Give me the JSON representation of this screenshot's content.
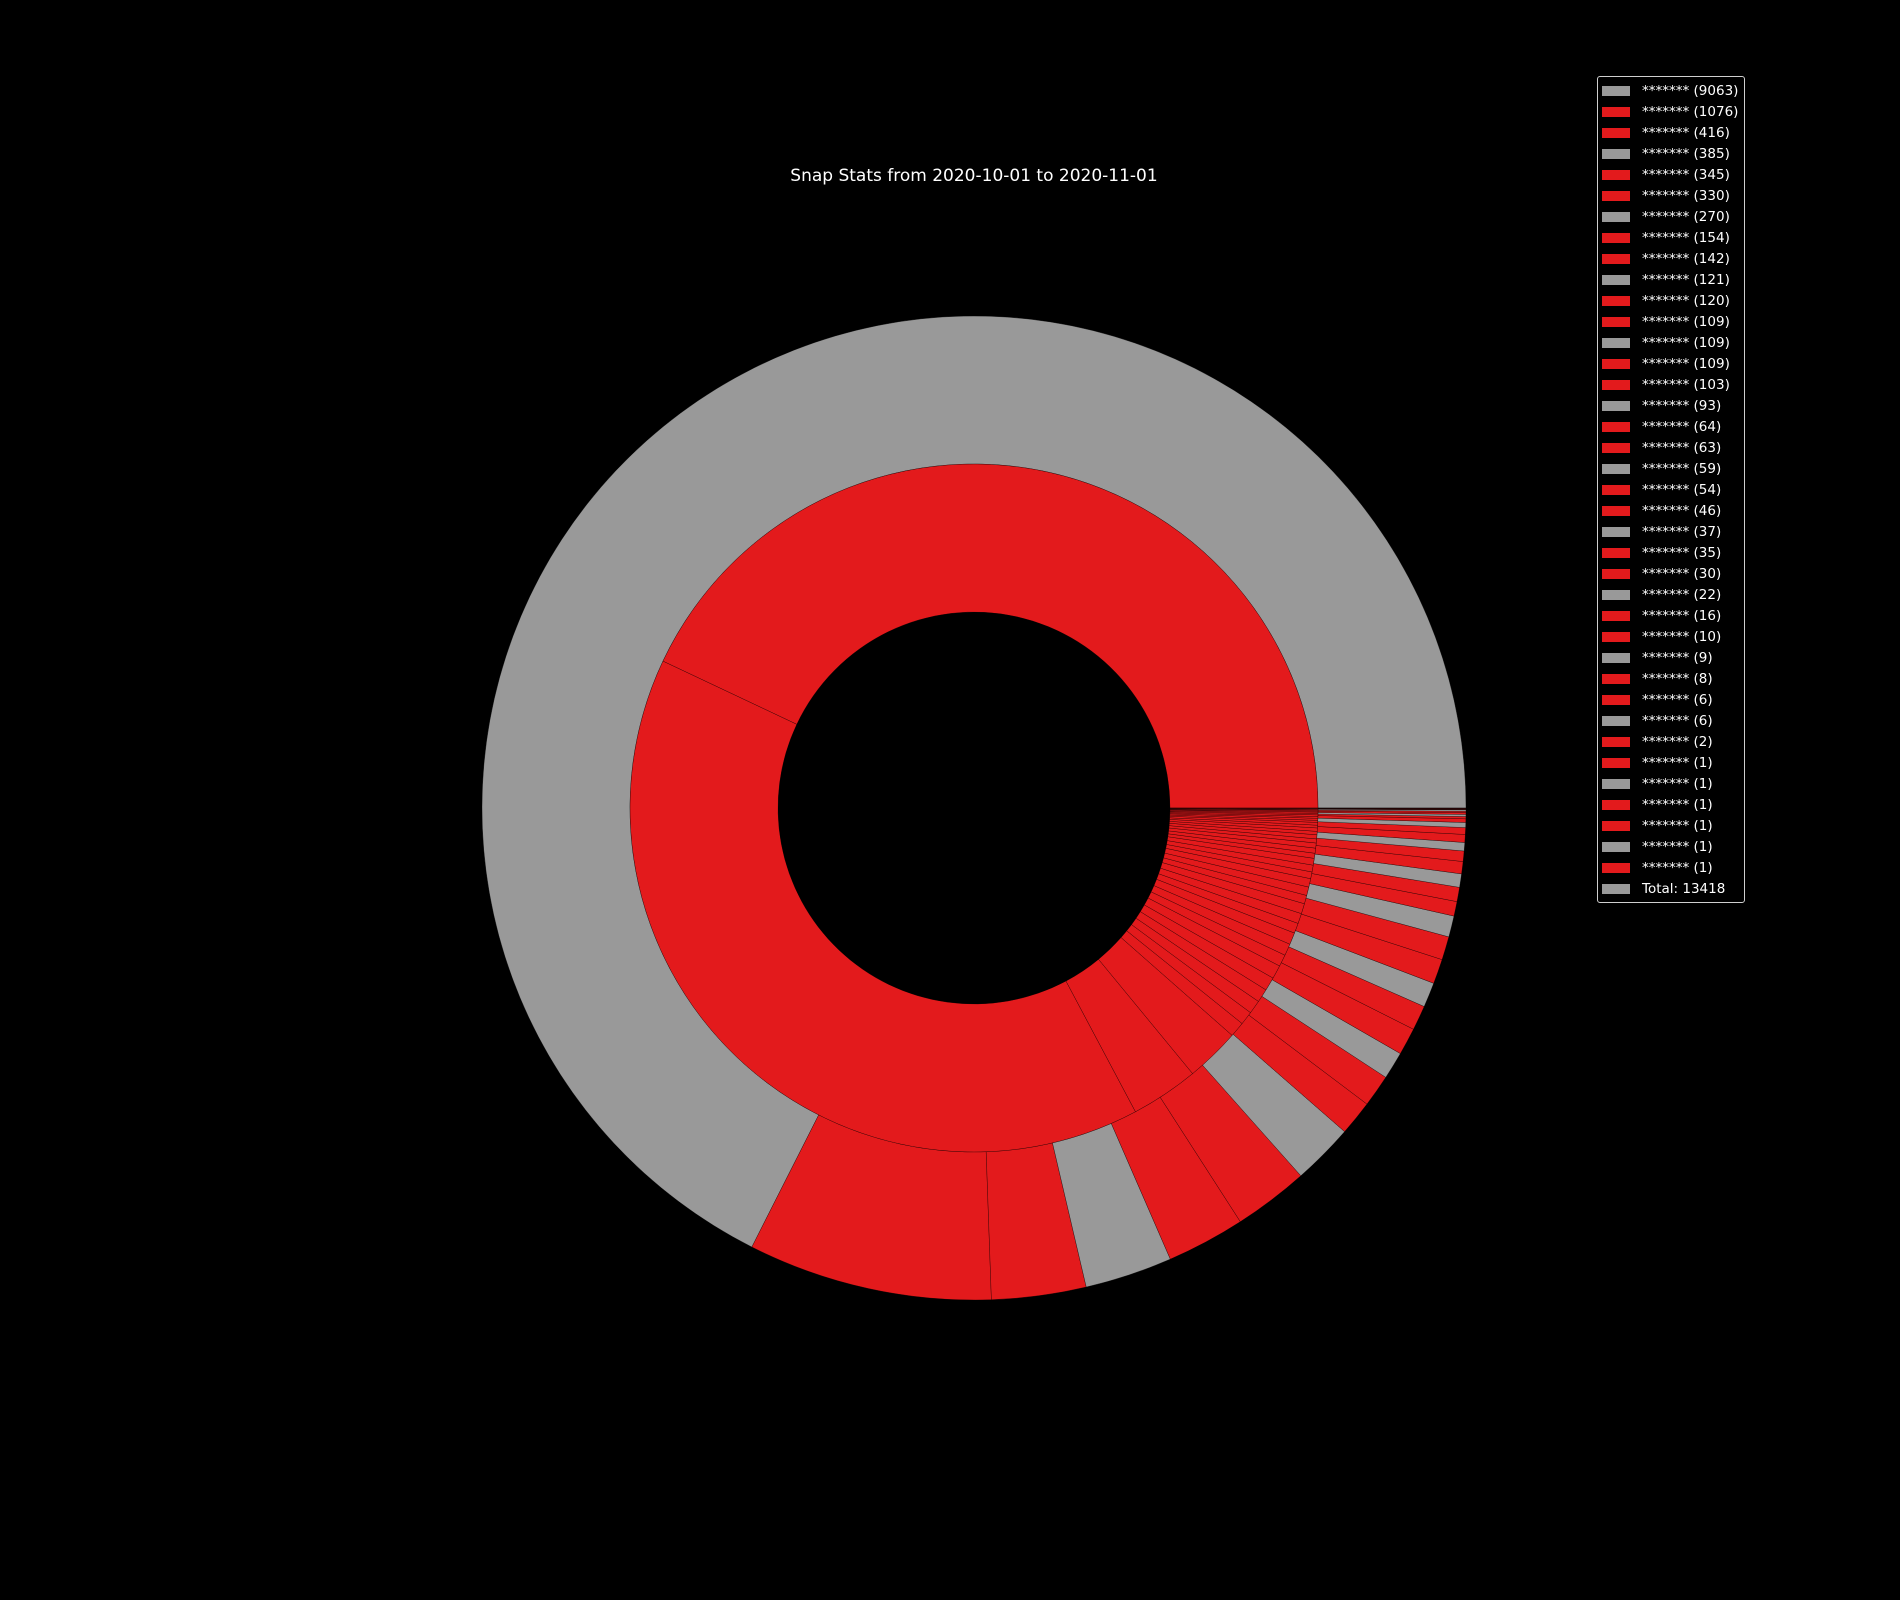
{
  "chart_data": {
    "type": "pie",
    "subtype": "nested-donut",
    "title": "Snap Stats from 2020-10-01 to 2020-11-01",
    "colors": {
      "grey": "#999999",
      "red": "#e31a1c",
      "background": "#000000"
    },
    "legend_placement": "top-right",
    "outer_ring": [
      {
        "label": "******* (9063)",
        "value": 9063,
        "color": "grey"
      },
      {
        "label": "******* (1076)",
        "value": 1076,
        "color": "red"
      },
      {
        "label": "******* (416)",
        "value": 416,
        "color": "red"
      },
      {
        "label": "******* (385)",
        "value": 385,
        "color": "grey"
      },
      {
        "label": "******* (345)",
        "value": 345,
        "color": "red"
      },
      {
        "label": "******* (330)",
        "value": 330,
        "color": "red"
      },
      {
        "label": "******* (270)",
        "value": 270,
        "color": "grey"
      },
      {
        "label": "******* (154)",
        "value": 154,
        "color": "red"
      },
      {
        "label": "******* (142)",
        "value": 142,
        "color": "red"
      },
      {
        "label": "******* (121)",
        "value": 121,
        "color": "grey"
      },
      {
        "label": "******* (120)",
        "value": 120,
        "color": "red"
      },
      {
        "label": "******* (109)",
        "value": 109,
        "color": "red"
      },
      {
        "label": "******* (109)",
        "value": 109,
        "color": "grey"
      },
      {
        "label": "******* (109)",
        "value": 109,
        "color": "red"
      },
      {
        "label": "******* (103)",
        "value": 103,
        "color": "red"
      },
      {
        "label": "******* (93)",
        "value": 93,
        "color": "grey"
      },
      {
        "label": "******* (64)",
        "value": 64,
        "color": "red"
      },
      {
        "label": "******* (63)",
        "value": 63,
        "color": "red"
      },
      {
        "label": "******* (59)",
        "value": 59,
        "color": "grey"
      },
      {
        "label": "******* (54)",
        "value": 54,
        "color": "red"
      },
      {
        "label": "******* (46)",
        "value": 46,
        "color": "red"
      },
      {
        "label": "******* (37)",
        "value": 37,
        "color": "grey"
      },
      {
        "label": "******* (35)",
        "value": 35,
        "color": "red"
      },
      {
        "label": "******* (30)",
        "value": 30,
        "color": "red"
      },
      {
        "label": "******* (22)",
        "value": 22,
        "color": "grey"
      },
      {
        "label": "******* (16)",
        "value": 16,
        "color": "red"
      },
      {
        "label": "******* (10)",
        "value": 10,
        "color": "red"
      },
      {
        "label": "******* (9)",
        "value": 9,
        "color": "grey"
      },
      {
        "label": "******* (8)",
        "value": 8,
        "color": "red"
      },
      {
        "label": "******* (6)",
        "value": 6,
        "color": "red"
      },
      {
        "label": "******* (6)",
        "value": 6,
        "color": "grey"
      },
      {
        "label": "******* (2)",
        "value": 2,
        "color": "red"
      },
      {
        "label": "******* (1)",
        "value": 1,
        "color": "red"
      },
      {
        "label": "******* (1)",
        "value": 1,
        "color": "grey"
      },
      {
        "label": "******* (1)",
        "value": 1,
        "color": "red"
      },
      {
        "label": "******* (1)",
        "value": 1,
        "color": "red"
      },
      {
        "label": "******* (1)",
        "value": 1,
        "color": "grey"
      },
      {
        "label": "******* (1)",
        "value": 1,
        "color": "red"
      }
    ],
    "inner_ring": [
      {
        "value": 2700,
        "color": "red"
      },
      {
        "value": 2500,
        "color": "red"
      },
      {
        "value": 200,
        "color": "red"
      },
      {
        "value": 160,
        "color": "red"
      },
      {
        "value": 45,
        "color": "red"
      },
      {
        "value": 40,
        "color": "red"
      },
      {
        "value": 40,
        "color": "red"
      },
      {
        "value": 40,
        "color": "red"
      },
      {
        "value": 40,
        "color": "red"
      },
      {
        "value": 40,
        "color": "red"
      },
      {
        "value": 35,
        "color": "red"
      },
      {
        "value": 35,
        "color": "red"
      },
      {
        "value": 35,
        "color": "red"
      },
      {
        "value": 30,
        "color": "red"
      },
      {
        "value": 30,
        "color": "red"
      },
      {
        "value": 30,
        "color": "red"
      },
      {
        "value": 25,
        "color": "red"
      },
      {
        "value": 25,
        "color": "red"
      },
      {
        "value": 25,
        "color": "red"
      },
      {
        "value": 20,
        "color": "red"
      },
      {
        "value": 20,
        "color": "red"
      },
      {
        "value": 20,
        "color": "red"
      },
      {
        "value": 15,
        "color": "red"
      },
      {
        "value": 15,
        "color": "red"
      },
      {
        "value": 15,
        "color": "red"
      },
      {
        "value": 12,
        "color": "red"
      },
      {
        "value": 12,
        "color": "red"
      },
      {
        "value": 10,
        "color": "red"
      },
      {
        "value": 10,
        "color": "red"
      },
      {
        "value": 8,
        "color": "red"
      },
      {
        "value": 8,
        "color": "red"
      },
      {
        "value": 6,
        "color": "red"
      },
      {
        "value": 6,
        "color": "red"
      },
      {
        "value": 5,
        "color": "red"
      },
      {
        "value": 5,
        "color": "red"
      },
      {
        "value": 4,
        "color": "red"
      },
      {
        "value": 4,
        "color": "red"
      },
      {
        "value": 3,
        "color": "red"
      },
      {
        "value": 3,
        "color": "red"
      },
      {
        "value": 2,
        "color": "red"
      },
      {
        "value": 2,
        "color": "red"
      },
      {
        "value": 1,
        "color": "red"
      },
      {
        "value": 1,
        "color": "red"
      }
    ],
    "total_label": "Total: 13418",
    "total_color": "grey"
  }
}
